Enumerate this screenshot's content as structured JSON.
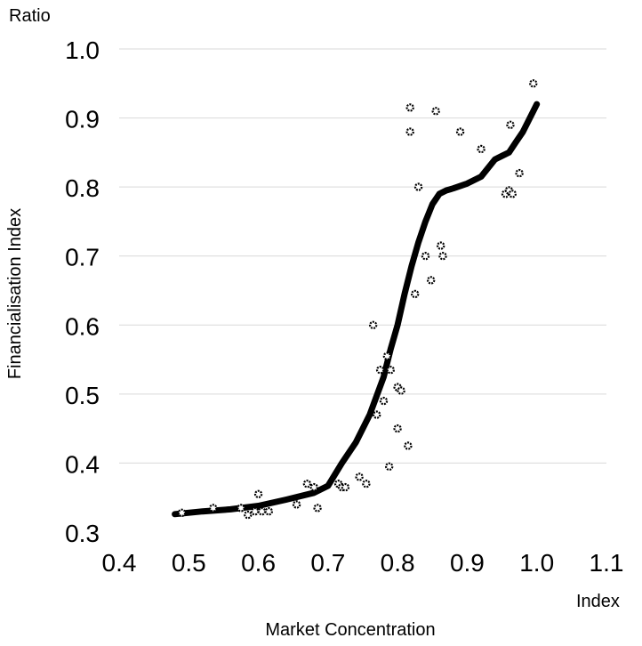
{
  "chart_data": {
    "type": "scatter",
    "title": "",
    "xlabel": "Market Concentration",
    "ylabel": "Financialisation Index",
    "x_unit_label": "Index",
    "y_unit_label": "Ratio",
    "xlim": [
      0.4,
      1.1
    ],
    "ylim": [
      0.3,
      1.0
    ],
    "x_ticks": [
      "0.4",
      "0.5",
      "0.6",
      "0.7",
      "0.8",
      "0.9",
      "1.0",
      "1.1"
    ],
    "y_ticks": [
      "0.3",
      "0.4",
      "0.5",
      "0.6",
      "0.7",
      "0.8",
      "0.9",
      "1.0"
    ],
    "grid": "horizontal",
    "series": [
      {
        "kind": "points",
        "x": [
          0.49,
          0.535,
          0.575,
          0.585,
          0.595,
          0.6,
          0.605,
          0.615,
          0.655,
          0.67,
          0.68,
          0.685,
          0.715,
          0.72,
          0.725,
          0.745,
          0.755,
          0.765,
          0.77,
          0.775,
          0.78,
          0.785,
          0.788,
          0.79,
          0.8,
          0.8,
          0.805,
          0.815,
          0.818,
          0.818,
          0.825,
          0.83,
          0.84,
          0.848,
          0.855,
          0.862,
          0.865,
          0.89,
          0.92,
          0.955,
          0.96,
          0.962,
          0.965,
          0.975,
          0.995
        ],
        "y": [
          0.328,
          0.335,
          0.335,
          0.325,
          0.33,
          0.355,
          0.33,
          0.33,
          0.34,
          0.37,
          0.365,
          0.335,
          0.37,
          0.365,
          0.365,
          0.38,
          0.37,
          0.6,
          0.47,
          0.535,
          0.49,
          0.555,
          0.395,
          0.535,
          0.45,
          0.51,
          0.505,
          0.425,
          0.915,
          0.88,
          0.645,
          0.8,
          0.7,
          0.665,
          0.91,
          0.715,
          0.7,
          0.88,
          0.855,
          0.79,
          0.795,
          0.89,
          0.79,
          0.82,
          0.95
        ]
      },
      {
        "kind": "trend-line",
        "x": [
          0.48,
          0.52,
          0.56,
          0.6,
          0.64,
          0.68,
          0.7,
          0.72,
          0.74,
          0.76,
          0.78,
          0.79,
          0.8,
          0.81,
          0.82,
          0.83,
          0.84,
          0.85,
          0.86,
          0.87,
          0.88,
          0.9,
          0.92,
          0.94,
          0.95,
          0.96,
          0.97,
          0.98,
          1.0
        ],
        "y": [
          0.326,
          0.33,
          0.333,
          0.338,
          0.347,
          0.357,
          0.367,
          0.4,
          0.43,
          0.47,
          0.525,
          0.565,
          0.6,
          0.645,
          0.685,
          0.72,
          0.75,
          0.775,
          0.79,
          0.795,
          0.798,
          0.805,
          0.815,
          0.84,
          0.845,
          0.85,
          0.865,
          0.88,
          0.92
        ]
      }
    ],
    "colors": {
      "points": "#000000",
      "line": "#000000",
      "grid": "#d9d9d9"
    }
  }
}
